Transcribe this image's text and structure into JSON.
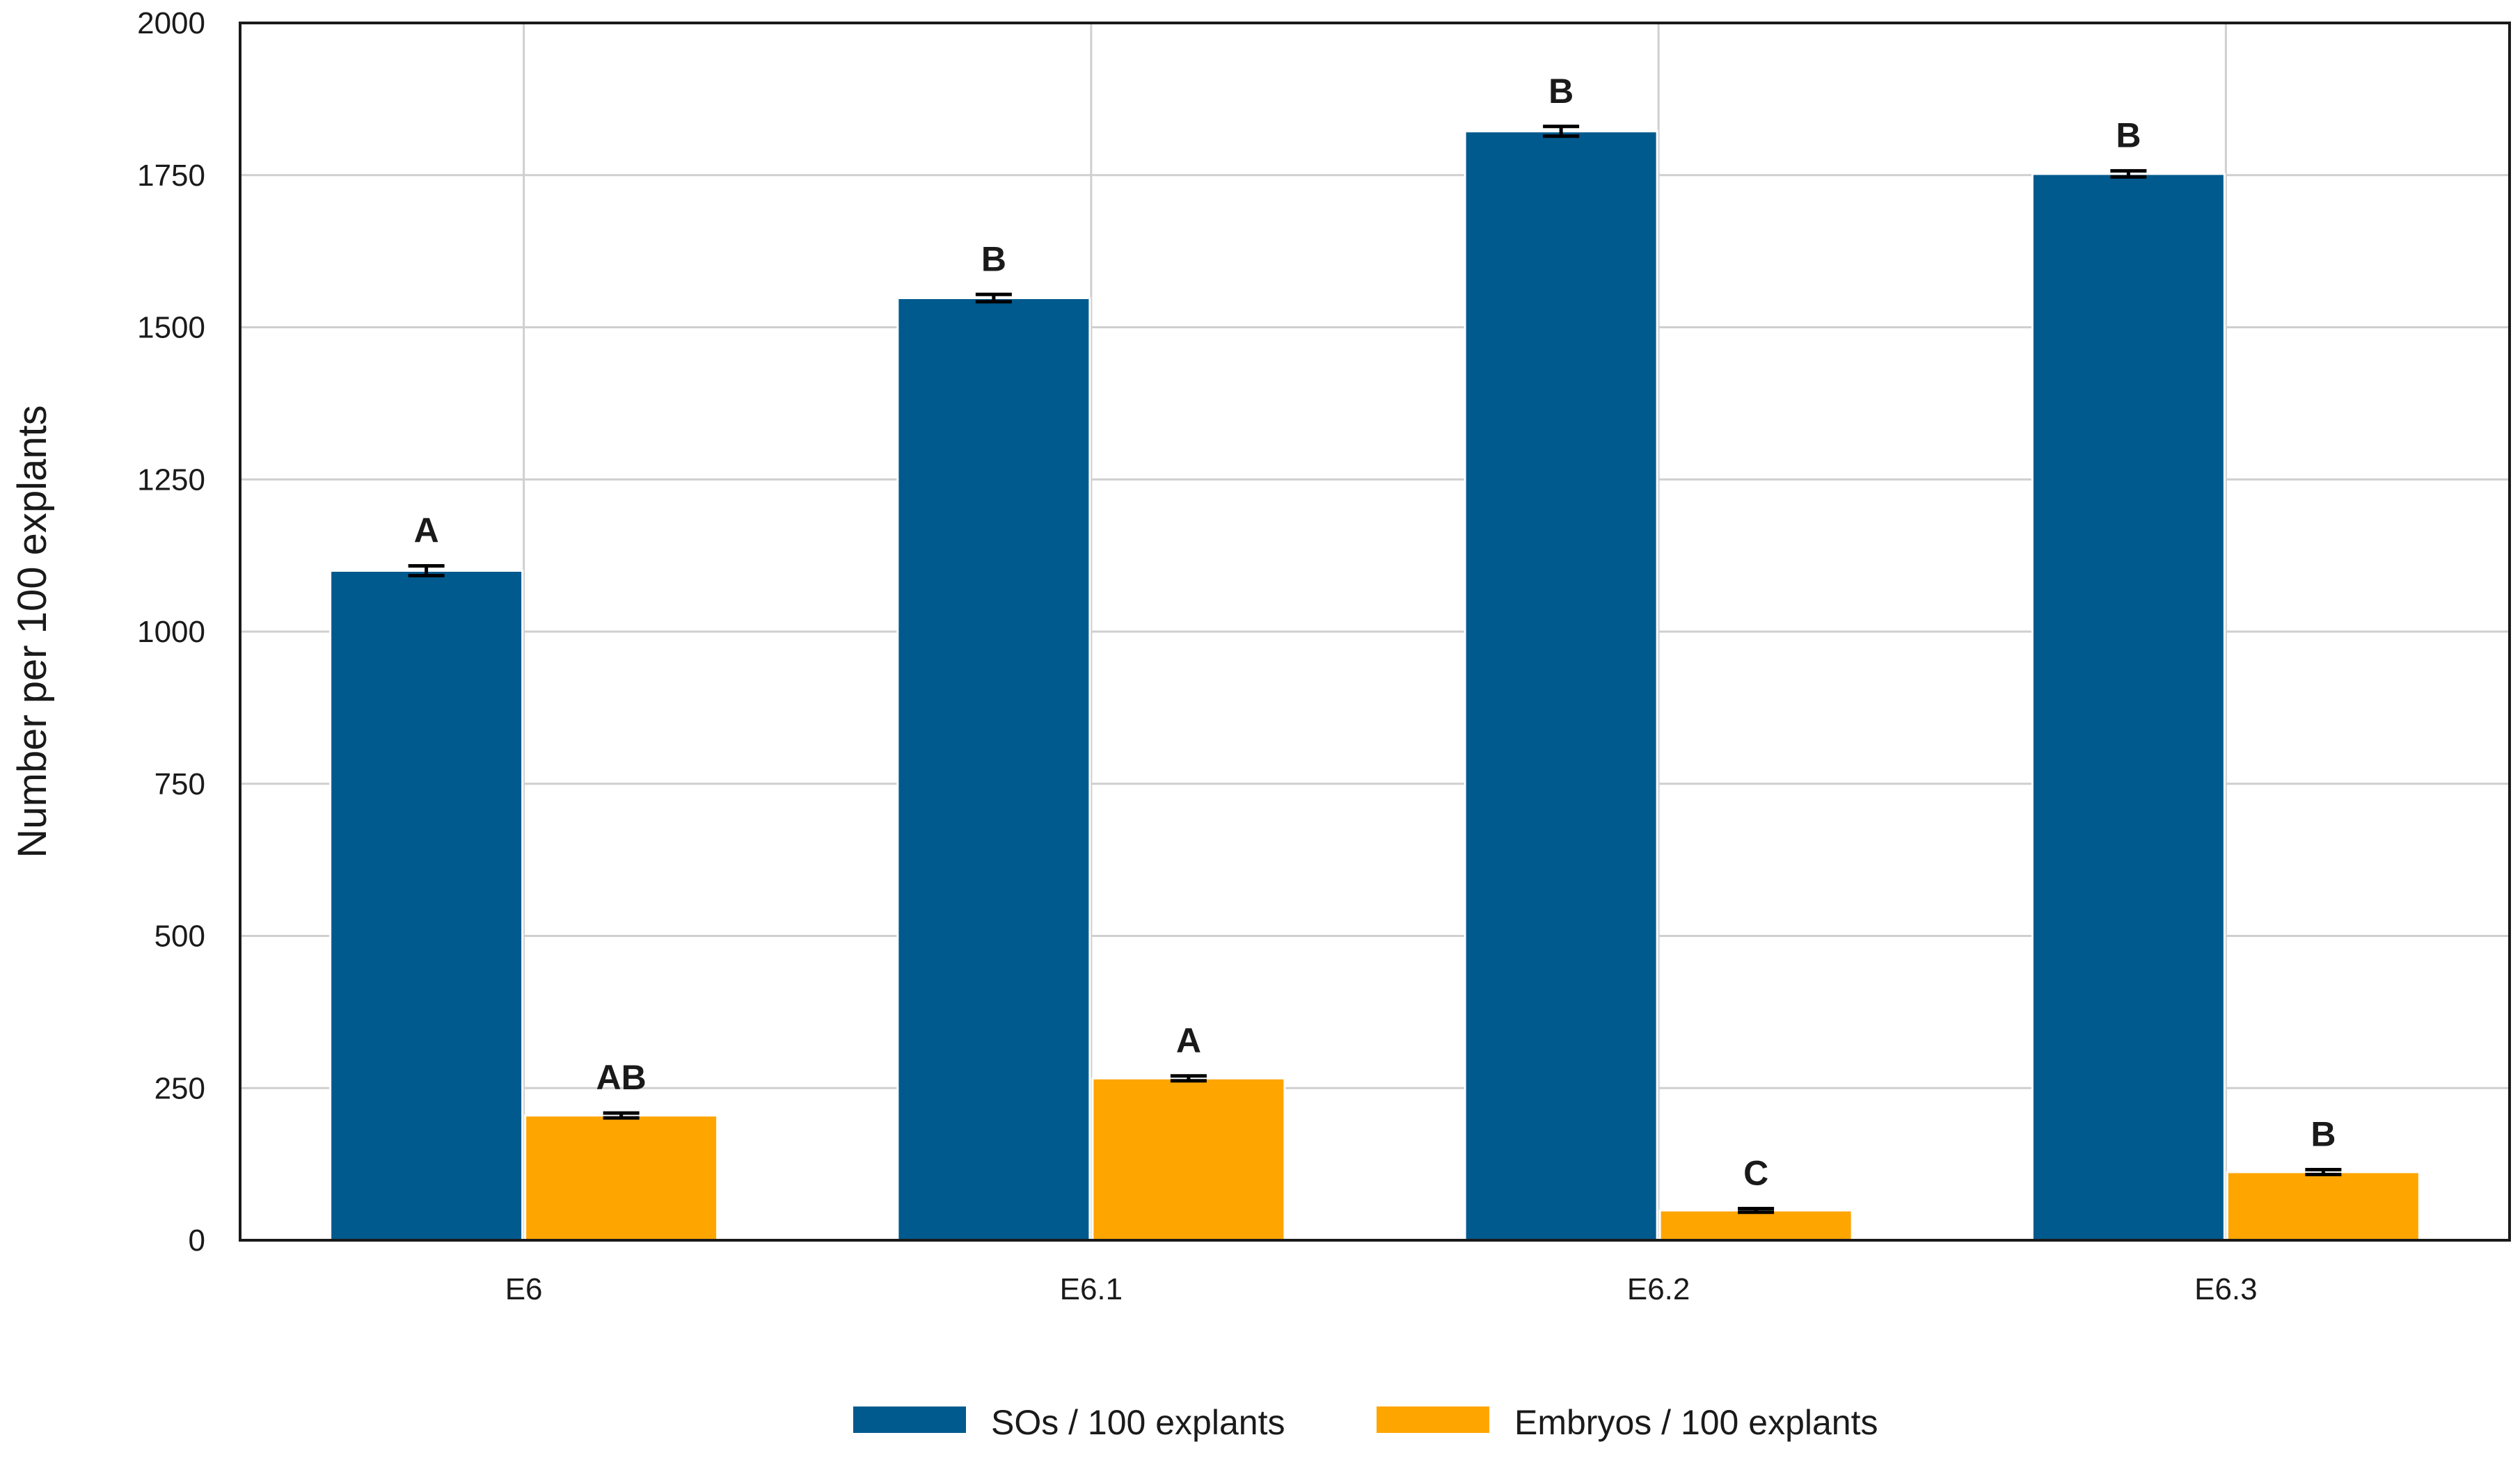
{
  "chart_data": {
    "type": "bar",
    "title": "",
    "xlabel": "",
    "ylabel": "Number per 100 explants",
    "ylim": [
      0,
      2000
    ],
    "yticks": [
      0,
      250,
      500,
      750,
      1000,
      1250,
      1500,
      1750,
      2000
    ],
    "categories": [
      "E6",
      "E6.1",
      "E6.2",
      "E6.3"
    ],
    "series": [
      {
        "name": "SOs / 100 explants",
        "color": "#005a8d",
        "values": [
          1100,
          1548,
          1822,
          1752
        ],
        "errors": [
          8,
          6,
          8,
          5
        ],
        "significance": [
          "A",
          "B",
          "B",
          "B"
        ]
      },
      {
        "name": "Embryos / 100 explants",
        "color": "#ffa500",
        "values": [
          205,
          266,
          49,
          112
        ],
        "errors": [
          4,
          4,
          3,
          4
        ],
        "significance": [
          "AB",
          "A",
          "C",
          "B"
        ]
      }
    ],
    "grid": true,
    "legend": "bottom-center"
  }
}
